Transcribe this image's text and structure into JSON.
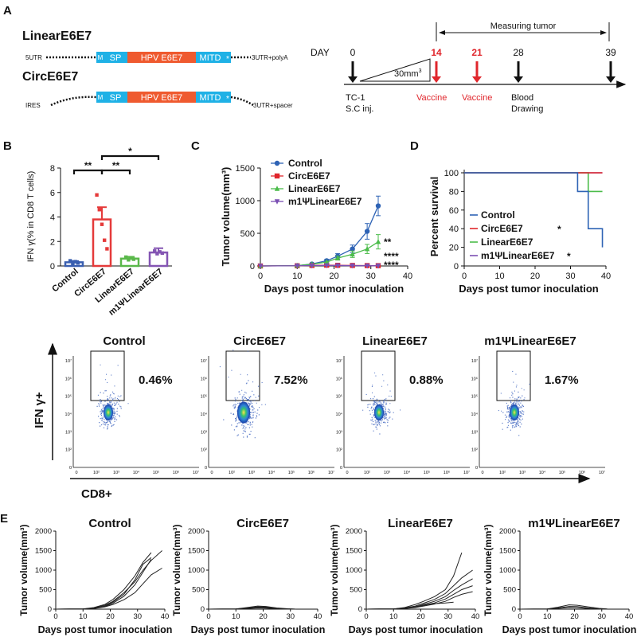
{
  "panelA": {
    "label": "A",
    "linear_title": "LinearE6E7",
    "circ_title": "CircE6E7",
    "linear_5utr": "5UTR",
    "linear_3utr": "3UTR+polyA",
    "circ_ires": "IRES",
    "circ_3utr": "3UTR+spacer",
    "m": "M",
    "sp": "SP",
    "e6e7": "HPV E6E7",
    "mitd": "MITD",
    "star": "*",
    "day_label": "DAY",
    "measuring": "Measuring tumor",
    "days": [
      "0",
      "14",
      "21",
      "28",
      "39"
    ],
    "size": "30mm",
    "size_sup": "3",
    "tc1_line1": "TC-1",
    "tc1_line2": "S.C inj.",
    "vaccine1": "Vaccine",
    "vaccine2": "Vaccine",
    "blood1": "Blood",
    "blood2": "Drawing",
    "colors": {
      "blue": "#1fb1e6",
      "orange": "#ef5a2f",
      "red": "#e0262c"
    }
  },
  "panelB": {
    "label": "B",
    "ylabel": "IFN γ(% in CD8 T cells)",
    "chart_data": {
      "type": "bar",
      "categories": [
        "Control",
        "CircE6E7",
        "LinearE6E7",
        "m1ΨLinearE6E7"
      ],
      "values": [
        0.3,
        3.8,
        0.6,
        1.1
      ],
      "errors": [
        0.1,
        1.0,
        0.15,
        0.35
      ],
      "colors": [
        "#3a5fb0",
        "#e53a3a",
        "#5ab84a",
        "#8455b3"
      ],
      "yticks": [
        "0",
        "2",
        "4",
        "6",
        "8"
      ],
      "ylim": [
        0,
        8
      ],
      "sig": [
        {
          "from": 0,
          "to": 1,
          "text": "**"
        },
        {
          "from": 1,
          "to": 2,
          "text": "**"
        },
        {
          "from": 1,
          "to": 3,
          "text": "*"
        }
      ]
    }
  },
  "panelC": {
    "label": "C",
    "chart_data": {
      "type": "line",
      "xlabel": "Days post tumor inoculation",
      "ylabel": "Tumor volume(mm³)",
      "xlim": [
        0,
        40
      ],
      "ylim": [
        0,
        1500
      ],
      "xticks": [
        "0",
        "10",
        "20",
        "30",
        "40"
      ],
      "yticks": [
        "0",
        "500",
        "1000",
        "1500"
      ],
      "x": [
        0,
        10,
        14,
        18,
        21,
        25,
        29,
        32
      ],
      "series": [
        {
          "name": "Control",
          "color": "#2e63b5",
          "marker": "circle",
          "values": [
            0,
            5,
            30,
            80,
            150,
            260,
            530,
            920
          ],
          "err": [
            0,
            2,
            10,
            20,
            40,
            60,
            120,
            150
          ]
        },
        {
          "name": "CircE6E7",
          "color": "#e0262c",
          "marker": "square",
          "values": [
            0,
            3,
            8,
            12,
            10,
            8,
            6,
            5
          ],
          "err": [
            0,
            1,
            3,
            4,
            4,
            3,
            2,
            2
          ]
        },
        {
          "name": "LinearE6E7",
          "color": "#4bbc4a",
          "marker": "triangle",
          "values": [
            0,
            5,
            25,
            60,
            120,
            180,
            260,
            370
          ],
          "err": [
            0,
            2,
            8,
            15,
            30,
            50,
            70,
            110
          ]
        },
        {
          "name": "m1ΨLinearE6E7",
          "color": "#7b4fb3",
          "marker": "triangle-down",
          "values": [
            0,
            3,
            6,
            8,
            7,
            5,
            4,
            3
          ],
          "err": [
            0,
            1,
            2,
            2,
            2,
            2,
            1,
            1
          ]
        }
      ],
      "annotations": [
        "**",
        "****",
        "****"
      ]
    }
  },
  "panelD": {
    "label": "D",
    "chart_data": {
      "type": "line",
      "xlabel": "Days post tumor inoculation",
      "ylabel": "Percent survival",
      "xlim": [
        0,
        40
      ],
      "ylim": [
        0,
        100
      ],
      "xticks": [
        "0",
        "10",
        "20",
        "30",
        "40"
      ],
      "yticks": [
        "0",
        "20",
        "40",
        "60",
        "80",
        "100"
      ],
      "series": [
        {
          "name": "Control",
          "color": "#2e63b5",
          "steps": [
            [
              0,
              100
            ],
            [
              32,
              100
            ],
            [
              32,
              80
            ],
            [
              35,
              80
            ],
            [
              35,
              40
            ],
            [
              39,
              40
            ],
            [
              39,
              20
            ]
          ],
          "mark": ""
        },
        {
          "name": "CircE6E7",
          "color": "#e0262c",
          "steps": [
            [
              0,
              100
            ],
            [
              39,
              100
            ]
          ],
          "mark": "*"
        },
        {
          "name": "LinearE6E7",
          "color": "#4bbc4a",
          "steps": [
            [
              0,
              100
            ],
            [
              35,
              100
            ],
            [
              35,
              80
            ],
            [
              39,
              80
            ]
          ],
          "mark": ""
        },
        {
          "name": "m1ΨLinearE6E7",
          "color": "#7b4fb3",
          "steps": [
            [
              0,
              100
            ],
            [
              39,
              100
            ]
          ],
          "mark": "*"
        }
      ]
    }
  },
  "flow": {
    "ylabel": "IFN γ+",
    "xlabel": "CD8+",
    "ticks": [
      "0",
      "10²",
      "10³",
      "10⁴",
      "10⁵",
      "10⁶",
      "10⁷"
    ],
    "plots": [
      {
        "title": "Control",
        "pct": "0.46%"
      },
      {
        "title": "CircE6E7",
        "pct": "7.52%"
      },
      {
        "title": "LinearE6E7",
        "pct": "0.88%"
      },
      {
        "title": "m1ΨLinearE6E7",
        "pct": "1.67%"
      }
    ]
  },
  "panelE": {
    "label": "E",
    "chart_data": [
      {
        "type": "line",
        "title": "Control",
        "xlabel": "Days post tumor inoculation",
        "ylabel": "Tumor volume(mm³)",
        "xlim": [
          0,
          40
        ],
        "ylim": [
          0,
          2000
        ],
        "xticks": [
          "0",
          "10",
          "20",
          "30",
          "40"
        ],
        "yticks": [
          "0",
          "500",
          "1000",
          "1500",
          "2000"
        ],
        "series": [
          {
            "x": [
              0,
              10,
              14,
              18,
              21,
              25,
              29,
              32,
              35
            ],
            "values": [
              0,
              5,
              40,
              120,
              250,
              500,
              850,
              1200,
              1450
            ]
          },
          {
            "x": [
              0,
              10,
              14,
              18,
              21,
              25,
              29,
              32,
              35,
              39
            ],
            "values": [
              0,
              5,
              30,
              100,
              200,
              420,
              700,
              1000,
              1250,
              1500
            ]
          },
          {
            "x": [
              0,
              10,
              14,
              18,
              21,
              25,
              29,
              32,
              35
            ],
            "values": [
              0,
              5,
              20,
              80,
              180,
              380,
              750,
              1150,
              1320
            ]
          },
          {
            "x": [
              0,
              10,
              14,
              18,
              21,
              25,
              29,
              32,
              35,
              39
            ],
            "values": [
              0,
              5,
              15,
              60,
              120,
              240,
              420,
              650,
              880,
              1050
            ]
          },
          {
            "x": [
              0,
              10,
              14,
              18,
              21,
              25,
              29,
              32,
              35
            ],
            "values": [
              0,
              5,
              20,
              70,
              150,
              330,
              620,
              950,
              1280
            ]
          }
        ]
      },
      {
        "type": "line",
        "title": "CircE6E7",
        "xlabel": "Days post tumor inoculation",
        "ylabel": "Tumor volume(mm³)",
        "xlim": [
          0,
          40
        ],
        "ylim": [
          0,
          2000
        ],
        "xticks": [
          "0",
          "10",
          "20",
          "30",
          "40"
        ],
        "yticks": [
          "0",
          "500",
          "1000",
          "1500",
          "2000"
        ],
        "series": [
          {
            "x": [
              0,
              10,
              14,
              18,
              21,
              25,
              29,
              32
            ],
            "values": [
              0,
              5,
              40,
              80,
              70,
              30,
              10,
              0
            ]
          },
          {
            "x": [
              0,
              10,
              14,
              18,
              21,
              25,
              29,
              32
            ],
            "values": [
              0,
              5,
              30,
              60,
              55,
              20,
              5,
              0
            ]
          },
          {
            "x": [
              0,
              10,
              14,
              18,
              21,
              25,
              29,
              32
            ],
            "values": [
              0,
              5,
              20,
              45,
              40,
              15,
              5,
              0
            ]
          },
          {
            "x": [
              0,
              10,
              14,
              18,
              21,
              25,
              29,
              32
            ],
            "values": [
              0,
              5,
              15,
              30,
              25,
              10,
              0,
              0
            ]
          }
        ]
      },
      {
        "type": "line",
        "title": "LinearE6E7",
        "xlabel": "Days post tumor inoculation",
        "ylabel": "Tumor volume(mm³)",
        "xlim": [
          0,
          40
        ],
        "ylim": [
          0,
          2000
        ],
        "xticks": [
          "0",
          "10",
          "20",
          "30",
          "40"
        ],
        "yticks": [
          "0",
          "500",
          "1000",
          "1500",
          "2000"
        ],
        "series": [
          {
            "x": [
              0,
              10,
              14,
              18,
              21,
              25,
              29,
              32,
              35
            ],
            "values": [
              0,
              5,
              40,
              120,
              200,
              320,
              500,
              850,
              1450
            ]
          },
          {
            "x": [
              0,
              10,
              14,
              18,
              21,
              25,
              29,
              32,
              35,
              39
            ],
            "values": [
              0,
              5,
              30,
              80,
              150,
              250,
              400,
              600,
              800,
              1000
            ]
          },
          {
            "x": [
              0,
              10,
              14,
              18,
              21,
              25,
              29,
              32,
              35,
              39
            ],
            "values": [
              0,
              5,
              25,
              60,
              120,
              200,
              320,
              480,
              620,
              780
            ]
          },
          {
            "x": [
              0,
              10,
              14,
              18,
              21,
              25,
              29,
              32,
              35,
              39
            ],
            "values": [
              0,
              5,
              20,
              50,
              100,
              160,
              260,
              380,
              500,
              600
            ]
          },
          {
            "x": [
              0,
              10,
              14,
              18,
              21,
              25,
              29,
              32,
              35,
              39
            ],
            "values": [
              0,
              5,
              15,
              40,
              80,
              130,
              200,
              300,
              380,
              450
            ]
          },
          {
            "x": [
              0,
              10,
              14,
              18,
              21,
              25,
              29,
              32
            ],
            "values": [
              0,
              5,
              20,
              60,
              100,
              140,
              160,
              180
            ]
          }
        ]
      },
      {
        "type": "line",
        "title": "m1ΨLinearE6E7",
        "xlabel": "Days post tumor inoculation",
        "ylabel": "Tumor volume(mm³)",
        "xlim": [
          0,
          40
        ],
        "ylim": [
          0,
          2000
        ],
        "xticks": [
          "0",
          "10",
          "20",
          "30",
          "40"
        ],
        "yticks": [
          "0",
          "500",
          "1000",
          "1500",
          "2000"
        ],
        "series": [
          {
            "x": [
              0,
              10,
              14,
              18,
              21,
              25,
              29,
              32
            ],
            "values": [
              0,
              5,
              50,
              110,
              100,
              60,
              20,
              5
            ]
          },
          {
            "x": [
              0,
              10,
              14,
              18,
              21,
              25,
              29,
              32
            ],
            "values": [
              0,
              5,
              30,
              70,
              65,
              30,
              10,
              0
            ]
          },
          {
            "x": [
              0,
              10,
              14,
              18,
              21,
              25,
              29,
              32
            ],
            "values": [
              0,
              5,
              20,
              40,
              35,
              15,
              5,
              0
            ]
          }
        ]
      }
    ]
  }
}
